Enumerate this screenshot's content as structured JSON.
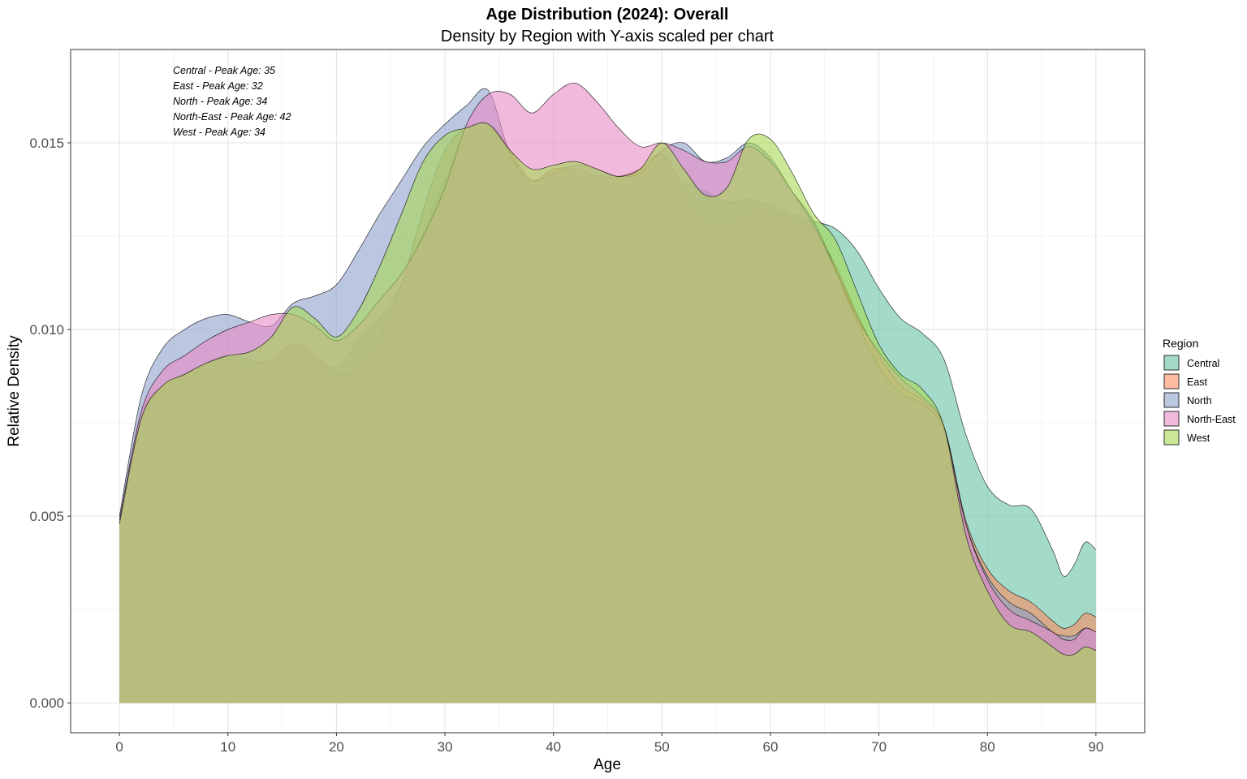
{
  "chart_data": {
    "type": "area",
    "title": "Age Distribution (2024): Overall",
    "subtitle": "Density by Region with Y-axis scaled per chart",
    "xlabel": "Age",
    "ylabel": "Relative Density",
    "xlim": [
      -4.5,
      94.5
    ],
    "ylim": [
      -0.0008,
      0.0175
    ],
    "x_ticks": [
      0,
      10,
      20,
      30,
      40,
      50,
      60,
      70,
      80,
      90
    ],
    "x_tick_labels": [
      "0",
      "10",
      "20",
      "30",
      "40",
      "50",
      "60",
      "70",
      "80",
      "90"
    ],
    "y_ticks": [
      0,
      0.005,
      0.01,
      0.015
    ],
    "y_tick_labels": [
      "0.000",
      "0.005",
      "0.010",
      "0.015"
    ],
    "grid": true,
    "legend": {
      "title": "Region",
      "placement": "right",
      "entries": [
        "Central",
        "East",
        "North",
        "North-East",
        "West"
      ]
    },
    "annotations": [
      "Central - Peak Age: 35",
      "East - Peak Age: 32",
      "North - Peak Age: 34",
      "North-East - Peak Age: 42",
      "West - Peak Age: 34"
    ],
    "x": [
      0,
      2,
      4,
      6,
      8,
      10,
      12,
      14,
      16,
      18,
      20,
      22,
      24,
      26,
      28,
      30,
      32,
      34,
      36,
      38,
      40,
      42,
      44,
      46,
      48,
      50,
      52,
      54,
      56,
      58,
      60,
      62,
      64,
      66,
      68,
      70,
      72,
      74,
      76,
      78,
      80,
      82,
      84,
      86,
      87,
      88,
      89,
      90
    ],
    "series": [
      {
        "name": "Central",
        "color": "#66c2a5",
        "values": [
          0.0048,
          0.0076,
          0.0084,
          0.0088,
          0.0091,
          0.0093,
          0.0092,
          0.0091,
          0.0094,
          0.0092,
          0.009,
          0.0097,
          0.0103,
          0.0112,
          0.0126,
          0.014,
          0.0151,
          0.0155,
          0.0148,
          0.0137,
          0.0136,
          0.0136,
          0.0135,
          0.0133,
          0.0134,
          0.0137,
          0.0139,
          0.0137,
          0.0134,
          0.0135,
          0.0133,
          0.0131,
          0.0129,
          0.0127,
          0.0121,
          0.0111,
          0.0103,
          0.0099,
          0.0092,
          0.0072,
          0.0058,
          0.0053,
          0.0052,
          0.0041,
          0.0034,
          0.0037,
          0.0043,
          0.0041
        ]
      },
      {
        "name": "East",
        "color": "#fc8d62",
        "values": [
          0.0048,
          0.0077,
          0.0085,
          0.0088,
          0.0091,
          0.0092,
          0.0091,
          0.0092,
          0.0096,
          0.0093,
          0.0088,
          0.009,
          0.0098,
          0.0112,
          0.0132,
          0.0148,
          0.0154,
          0.0155,
          0.0148,
          0.014,
          0.0143,
          0.0143,
          0.0141,
          0.0141,
          0.0143,
          0.0147,
          0.0138,
          0.0129,
          0.0128,
          0.0132,
          0.0132,
          0.013,
          0.0127,
          0.0117,
          0.0104,
          0.0093,
          0.0085,
          0.0081,
          0.0074,
          0.0049,
          0.0036,
          0.003,
          0.0027,
          0.0022,
          0.002,
          0.0021,
          0.0024,
          0.0023
        ]
      },
      {
        "name": "North",
        "color": "#8da0cb",
        "values": [
          0.005,
          0.0082,
          0.0095,
          0.01,
          0.0103,
          0.0104,
          0.0102,
          0.0101,
          0.0107,
          0.0109,
          0.0112,
          0.0121,
          0.0131,
          0.014,
          0.0149,
          0.0155,
          0.016,
          0.0164,
          0.0147,
          0.014,
          0.0142,
          0.0144,
          0.0143,
          0.0141,
          0.0142,
          0.0148,
          0.015,
          0.0145,
          0.0146,
          0.015,
          0.0146,
          0.0137,
          0.0129,
          0.0116,
          0.0102,
          0.009,
          0.0083,
          0.008,
          0.0073,
          0.0048,
          0.0034,
          0.0027,
          0.0024,
          0.0019,
          0.0018,
          0.0018,
          0.002,
          0.0019
        ]
      },
      {
        "name": "North-East",
        "color": "#e78ac3",
        "values": [
          0.0049,
          0.0078,
          0.0089,
          0.0093,
          0.0097,
          0.01,
          0.0102,
          0.0104,
          0.0104,
          0.0101,
          0.0097,
          0.0101,
          0.0108,
          0.0115,
          0.0125,
          0.0138,
          0.0155,
          0.0163,
          0.0163,
          0.0158,
          0.0163,
          0.0166,
          0.0161,
          0.0154,
          0.0149,
          0.015,
          0.0148,
          0.0145,
          0.0145,
          0.0149,
          0.0145,
          0.0137,
          0.0128,
          0.0116,
          0.0103,
          0.0094,
          0.0087,
          0.0082,
          0.0074,
          0.0048,
          0.0033,
          0.0025,
          0.0022,
          0.0019,
          0.0017,
          0.0017,
          0.002,
          0.0019
        ]
      },
      {
        "name": "West",
        "color": "#a6d854",
        "values": [
          0.0048,
          0.0076,
          0.0085,
          0.0088,
          0.0091,
          0.0093,
          0.0094,
          0.0098,
          0.0106,
          0.0103,
          0.0098,
          0.0105,
          0.0117,
          0.0131,
          0.0145,
          0.0152,
          0.0154,
          0.0155,
          0.0148,
          0.0143,
          0.0144,
          0.0145,
          0.0143,
          0.0141,
          0.0143,
          0.015,
          0.0143,
          0.0136,
          0.0138,
          0.0151,
          0.0151,
          0.0142,
          0.0131,
          0.0124,
          0.011,
          0.0096,
          0.0088,
          0.0084,
          0.0074,
          0.0045,
          0.003,
          0.0021,
          0.0019,
          0.0015,
          0.0013,
          0.0013,
          0.0015,
          0.0014
        ]
      }
    ]
  }
}
